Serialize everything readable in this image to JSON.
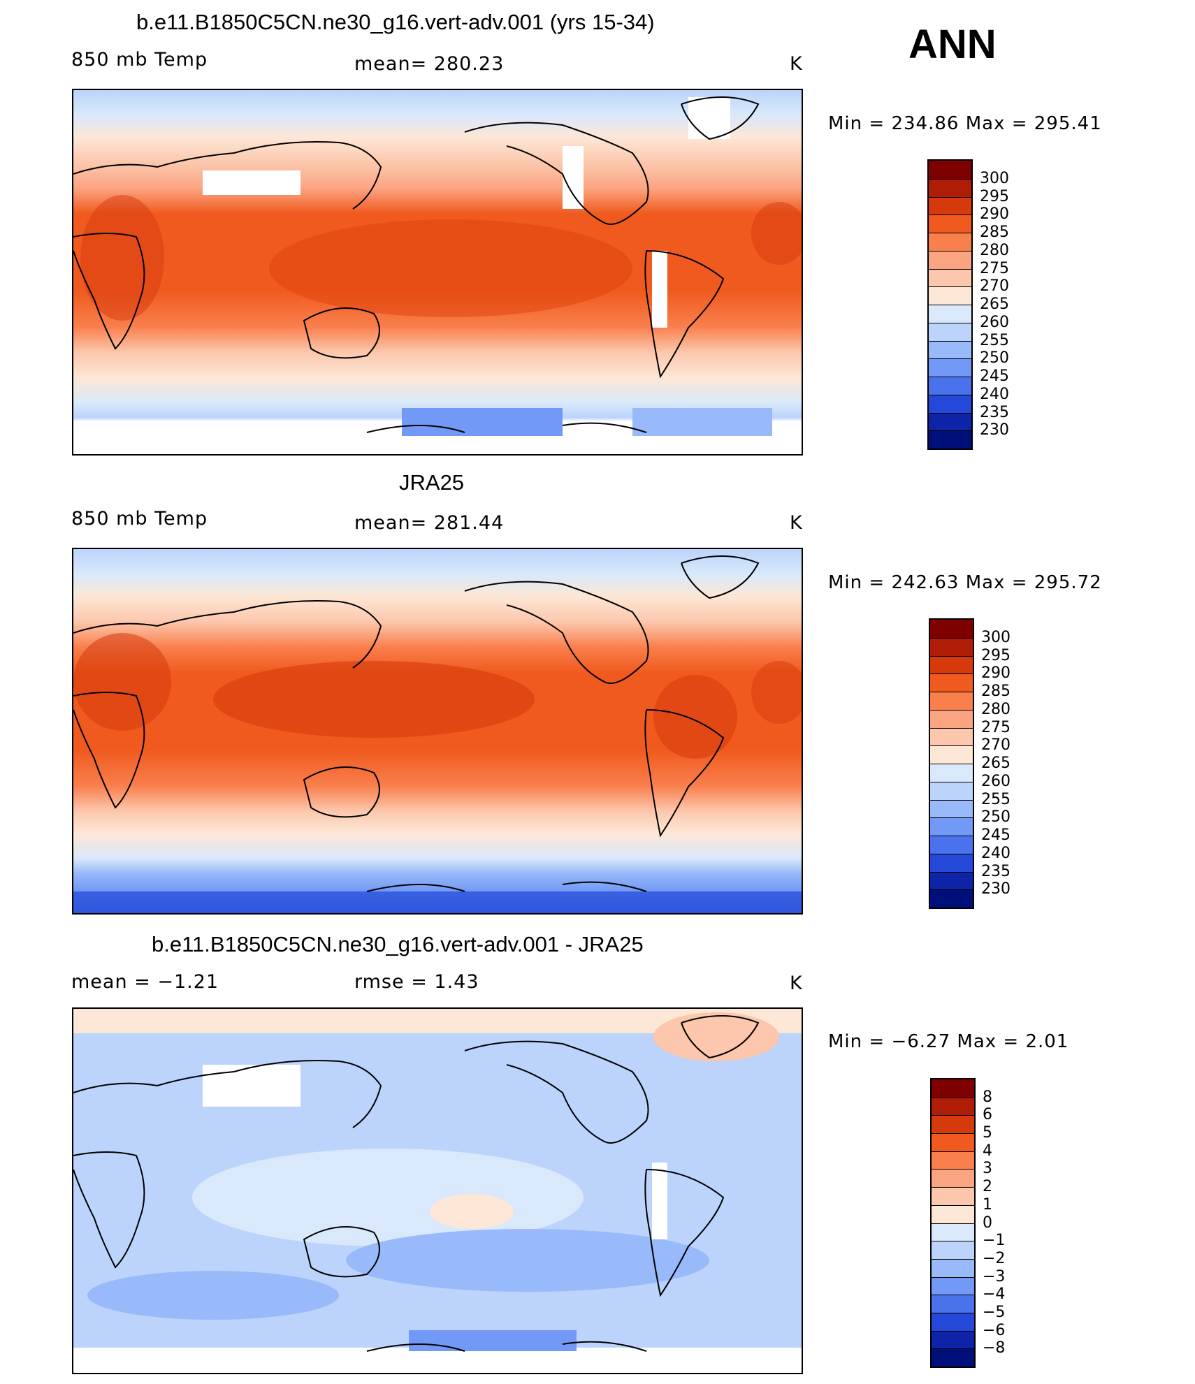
{
  "season": "ANN",
  "chart_data": [
    {
      "type": "heatmap",
      "title": "b.e11.B1850C5CN.ne30_g16.vert-adv.001 (yrs 15-34)",
      "left_label": "850 mb Temp",
      "center_label": "mean=  280.23",
      "units": "K",
      "minmax": "Min  =  234.86  Max  =  295.41",
      "colorbar_levels": [
        "300",
        "295",
        "290",
        "285",
        "280",
        "275",
        "270",
        "265",
        "260",
        "255",
        "250",
        "245",
        "240",
        "235",
        "230"
      ],
      "colorbar_colors": [
        "#7f0000",
        "#b01d06",
        "#d63a0c",
        "#f05a1e",
        "#f97f4d",
        "#fba482",
        "#fcc7ac",
        "#fde7d6",
        "#d9e9fb",
        "#bcd4fb",
        "#98b9fa",
        "#7299f5",
        "#4a72ec",
        "#2448d8",
        "#0d24a8",
        "#00107a"
      ],
      "mean": 280.23,
      "min": 234.86,
      "max": 295.41
    },
    {
      "type": "heatmap",
      "title": "JRA25",
      "left_label": "850 mb Temp",
      "center_label": "mean=  281.44",
      "units": "K",
      "minmax": "Min  =  242.63  Max  =  295.72",
      "colorbar_levels": [
        "300",
        "295",
        "290",
        "285",
        "280",
        "275",
        "270",
        "265",
        "260",
        "255",
        "250",
        "245",
        "240",
        "235",
        "230"
      ],
      "mean": 281.44,
      "min": 242.63,
      "max": 295.72
    },
    {
      "type": "heatmap",
      "title": "b.e11.B1850C5CN.ne30_g16.vert-adv.001 - JRA25",
      "left_label": "mean  =   −1.21",
      "center_label": "rmse  =    1.43",
      "units": "K",
      "minmax": "Min  =   −6.27  Max  =    2.01",
      "colorbar_levels": [
        "8",
        "6",
        "5",
        "4",
        "3",
        "2",
        "1",
        "0",
        "−1",
        "−2",
        "−3",
        "−4",
        "−5",
        "−6",
        "−8"
      ],
      "mean": -1.21,
      "rmse": 1.43,
      "min": -6.27,
      "max": 2.01
    }
  ]
}
